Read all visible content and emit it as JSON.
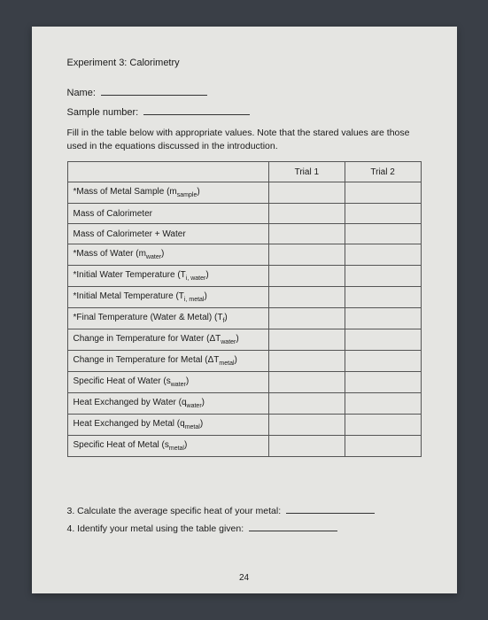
{
  "title": "Experiment 3: Calorimetry",
  "name_label": "Name:",
  "sample_label": "Sample number:",
  "instructions": "Fill in the table below with appropriate values. Note that the stared values are those used in the equations discussed in the introduction.",
  "table": {
    "headers": [
      "",
      "Trial 1",
      "Trial 2"
    ],
    "rows": [
      {
        "label": "*Mass of Metal Sample (m",
        "sub": "sample",
        "suffix": ")"
      },
      {
        "label": " Mass of Calorimeter",
        "sub": "",
        "suffix": ""
      },
      {
        "label": " Mass of Calorimeter + Water",
        "sub": "",
        "suffix": ""
      },
      {
        "label": "*Mass of Water (m",
        "sub": "water",
        "suffix": ")"
      },
      {
        "label": "*Initial Water Temperature (T",
        "sub": "i, water",
        "suffix": ")"
      },
      {
        "label": "*Initial Metal Temperature (T",
        "sub": "i, metal",
        "suffix": ")"
      },
      {
        "label": "*Final Temperature (Water & Metal) (T",
        "sub": "f",
        "suffix": ")"
      },
      {
        "label": "Change in Temperature for Water (ΔT",
        "sub": "water",
        "suffix": ")"
      },
      {
        "label": "Change in Temperature for Metal (ΔT",
        "sub": "metal",
        "suffix": ")"
      },
      {
        "label": "Specific Heat of Water (s",
        "sub": "water",
        "suffix": ")"
      },
      {
        "label": "Heat Exchanged by Water (q",
        "sub": "water",
        "suffix": ")"
      },
      {
        "label": "Heat Exchanged by Metal (q",
        "sub": "metal",
        "suffix": ")"
      },
      {
        "label": "Specific Heat of Metal (s",
        "sub": "metal",
        "suffix": ")"
      }
    ]
  },
  "questions": {
    "q3": "3.  Calculate the average specific heat of your metal:",
    "q4": "4.  Identify your metal using the table given:"
  },
  "page_number": "24"
}
